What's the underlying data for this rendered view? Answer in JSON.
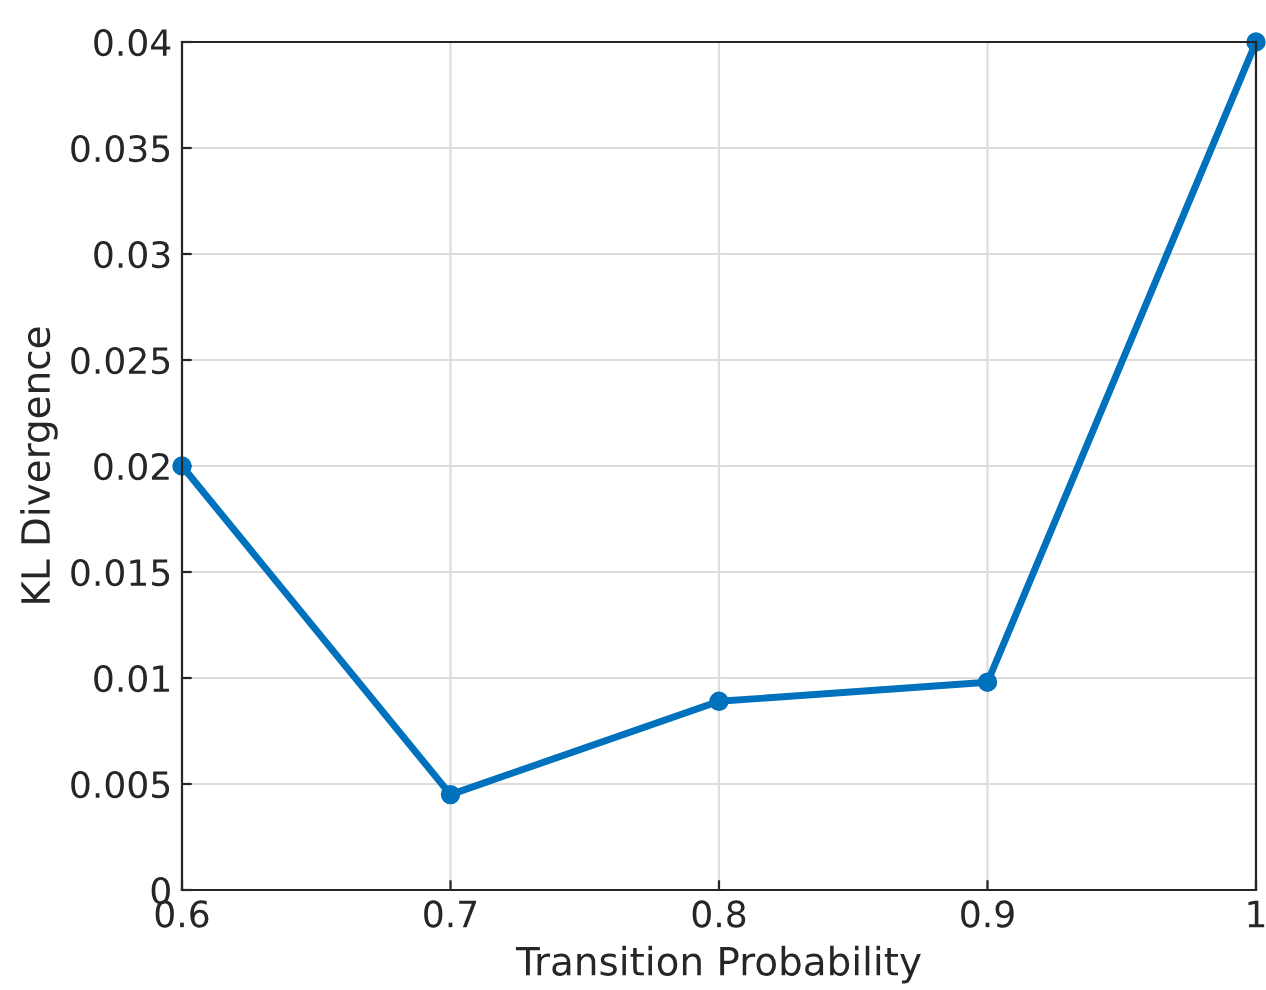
{
  "chart_data": {
    "type": "line",
    "xlabel": "Transition Probability",
    "ylabel": "KL Divergence",
    "x": [
      0.6,
      0.7,
      0.8,
      0.9,
      1.0
    ],
    "series": [
      {
        "color": "#0072bd",
        "values": [
          0.02,
          0.0045,
          0.0089,
          0.0098,
          0.04
        ]
      }
    ],
    "xlim": [
      0.6,
      1
    ],
    "xticks": [
      0.6,
      0.7,
      0.8,
      0.9,
      1
    ],
    "ylim": [
      0,
      0.04
    ],
    "yticks": [
      0,
      0.005,
      0.01,
      0.015,
      0.02,
      0.025,
      0.03,
      0.035,
      0.04
    ],
    "grid": true,
    "marker": "circle",
    "line_style": "solid"
  }
}
